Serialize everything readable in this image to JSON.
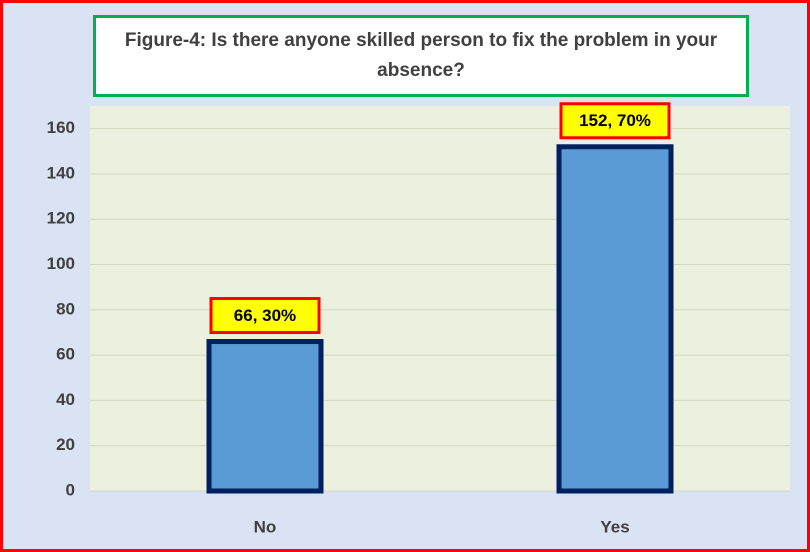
{
  "chart_data": {
    "type": "bar",
    "title": "Figure-4: Is there anyone skilled person to fix the problem in your absence?",
    "categories": [
      "No",
      "Yes"
    ],
    "values": [
      66,
      152
    ],
    "value_labels": [
      "66, 30%",
      "152, 70%"
    ],
    "color": "#5b9bd5",
    "ylim": [
      0,
      170
    ],
    "yticks": [
      0,
      20,
      40,
      60,
      80,
      100,
      120,
      140,
      160
    ],
    "grid": true
  }
}
